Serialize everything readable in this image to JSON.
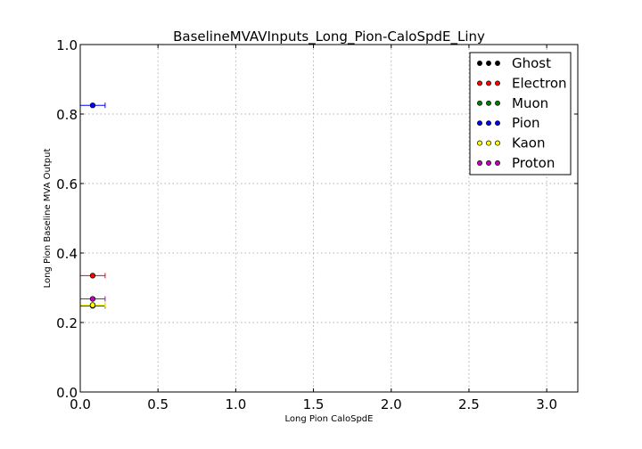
{
  "chart_data": {
    "type": "scatter",
    "title": "BaselineMVAVInputs_Long_Pion-CaloSpdE_Liny",
    "xlabel": "Long Pion CaloSpdE",
    "ylabel": "Long Pion Baseline MVA Output",
    "xlim": [
      0.0,
      3.2
    ],
    "ylim": [
      0.0,
      1.0
    ],
    "xticks": [
      "0.0",
      "0.5",
      "1.0",
      "1.5",
      "2.0",
      "2.5",
      "3.0"
    ],
    "yticks": [
      "0.0",
      "0.2",
      "0.4",
      "0.6",
      "0.8",
      "1.0"
    ],
    "grid": true,
    "legend_position": "top-right",
    "series": [
      {
        "name": "Ghost",
        "color": "#000000",
        "points": [
          {
            "x": 0.08,
            "y": 0.248,
            "xerr": 0.08
          }
        ]
      },
      {
        "name": "Electron",
        "color": "#ff0000",
        "points": [
          {
            "x": 0.08,
            "y": 0.335,
            "xerr": 0.08
          }
        ]
      },
      {
        "name": "Muon",
        "color": "#008000",
        "points": [
          {
            "x": 0.08,
            "y": 0.25,
            "xerr": 0.08
          }
        ]
      },
      {
        "name": "Pion",
        "color": "#0000ff",
        "points": [
          {
            "x": 0.08,
            "y": 0.825,
            "xerr": 0.08
          }
        ]
      },
      {
        "name": "Kaon",
        "color": "#ffff00",
        "points": [
          {
            "x": 0.08,
            "y": 0.25,
            "xerr": 0.08
          }
        ]
      },
      {
        "name": "Proton",
        "color": "#bf00bf",
        "points": [
          {
            "x": 0.08,
            "y": 0.268,
            "xerr": 0.08
          }
        ]
      }
    ]
  }
}
